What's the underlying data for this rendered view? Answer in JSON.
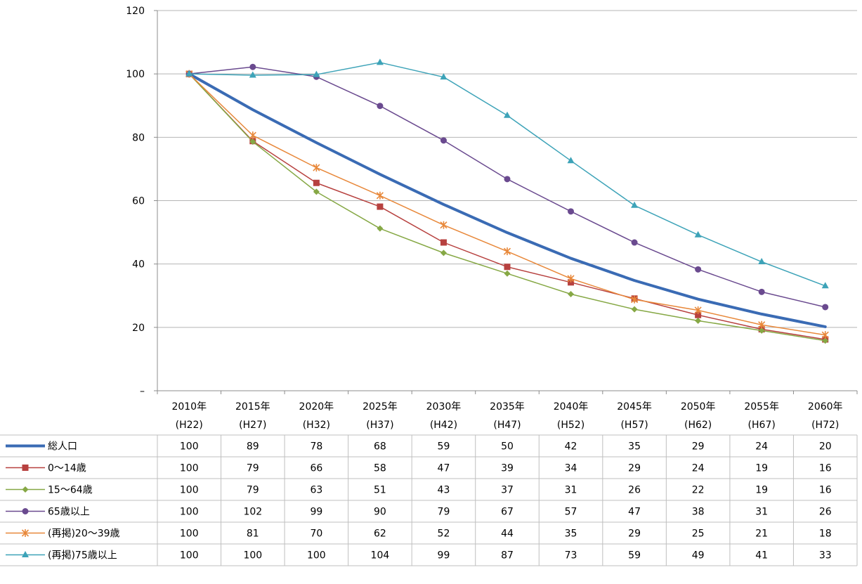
{
  "chart_data": {
    "type": "line",
    "categories": [
      [
        "2010年",
        "(H22)"
      ],
      [
        "2015年",
        "(H27)"
      ],
      [
        "2020年",
        "(H32)"
      ],
      [
        "2025年",
        "(H37)"
      ],
      [
        "2030年",
        "(H42)"
      ],
      [
        "2035年",
        "(H47)"
      ],
      [
        "2040年",
        "(H52)"
      ],
      [
        "2045年",
        "(H57)"
      ],
      [
        "2050年",
        "(H62)"
      ],
      [
        "2055年",
        "(H67)"
      ],
      [
        "2060年",
        "(H72)"
      ]
    ],
    "ylim": [
      0,
      120
    ],
    "yticks": [
      {
        "value": 120,
        "label": "120"
      },
      {
        "value": 100,
        "label": "100"
      },
      {
        "value": 80,
        "label": "80"
      },
      {
        "value": 60,
        "label": "60"
      },
      {
        "value": 40,
        "label": "40"
      },
      {
        "value": 20,
        "label": "20"
      },
      {
        "value": 0,
        "label": "–"
      }
    ],
    "grid": true,
    "series": [
      {
        "name": "総人口",
        "color": "#3A6BB4",
        "marker": "none",
        "width": 4,
        "values": [
          100,
          88.7,
          78.3,
          68.3,
          58.8,
          49.9,
          41.8,
          34.8,
          28.9,
          24.2,
          20.2
        ],
        "labels": [
          "100",
          "89",
          "78",
          "68",
          "59",
          "50",
          "42",
          "35",
          "29",
          "24",
          "20"
        ]
      },
      {
        "name": "0〜14歳",
        "color": "#B7413F",
        "marker": "square",
        "width": 1.5,
        "values": [
          100,
          78.8,
          65.6,
          58.1,
          46.8,
          39.1,
          34.2,
          29.1,
          23.9,
          19.4,
          16.2
        ],
        "labels": [
          "100",
          "79",
          "66",
          "58",
          "47",
          "39",
          "34",
          "29",
          "24",
          "19",
          "16"
        ]
      },
      {
        "name": "15〜64歳",
        "color": "#86A845",
        "marker": "diamond",
        "width": 1.5,
        "values": [
          100,
          78.6,
          62.8,
          51.2,
          43.5,
          37.0,
          30.5,
          25.7,
          22.1,
          19.0,
          15.8
        ],
        "labels": [
          "100",
          "79",
          "63",
          "51",
          "43",
          "37",
          "31",
          "26",
          "22",
          "19",
          "16"
        ]
      },
      {
        "name": "65歳以上",
        "color": "#6A4A8F",
        "marker": "circle",
        "width": 1.5,
        "values": [
          100,
          102.2,
          99.1,
          89.9,
          79.0,
          66.8,
          56.6,
          46.8,
          38.3,
          31.2,
          26.4
        ],
        "labels": [
          "100",
          "102",
          "99",
          "90",
          "79",
          "67",
          "57",
          "47",
          "38",
          "31",
          "26"
        ]
      },
      {
        "name": "(再掲)20〜39歳",
        "color": "#E8883A",
        "marker": "star",
        "width": 1.5,
        "values": [
          100,
          80.6,
          70.4,
          61.6,
          52.3,
          44.0,
          35.4,
          28.8,
          25.4,
          20.8,
          17.6
        ],
        "labels": [
          "100",
          "81",
          "70",
          "62",
          "52",
          "44",
          "35",
          "29",
          "25",
          "21",
          "18"
        ]
      },
      {
        "name": "(再掲)75歳以上",
        "color": "#3DA3B8",
        "marker": "triangle",
        "width": 1.5,
        "values": [
          100,
          99.6,
          99.8,
          103.6,
          99.0,
          86.9,
          72.6,
          58.5,
          49.2,
          40.7,
          33.1
        ],
        "labels": [
          "100",
          "100",
          "100",
          "104",
          "99",
          "87",
          "73",
          "59",
          "49",
          "41",
          "33"
        ]
      }
    ]
  }
}
